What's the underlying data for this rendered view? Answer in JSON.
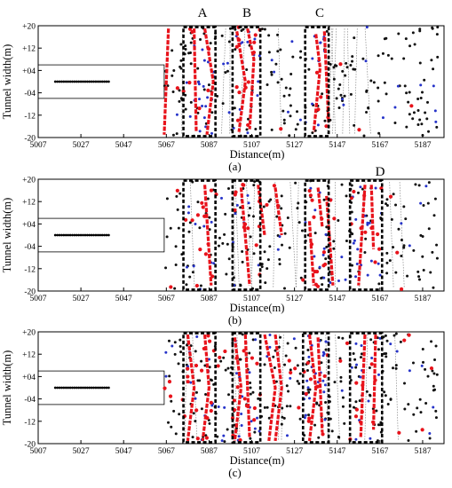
{
  "figure": {
    "letters": [
      "A",
      "B",
      "C",
      "D"
    ]
  },
  "chart_data": [
    {
      "type": "scatter",
      "caption": "(a)",
      "xlabel": "Distance(m)",
      "ylabel": "Tunnel width(m)",
      "xlim": [
        5007,
        5197
      ],
      "ylim": [
        -20,
        20
      ],
      "x_ticks": [
        "5007",
        "5027",
        "5047",
        "5067",
        "5087",
        "5107",
        "5127",
        "5147",
        "5167",
        "5187"
      ],
      "y_ticks": [
        "-20",
        "-12",
        "-04",
        "+04",
        "+12",
        "+20"
      ],
      "grid": false,
      "tunnel_face": {
        "x": [
          5007,
          5066
        ],
        "y": [
          -6,
          6
        ]
      },
      "measuring_points": {
        "x_start": 5015,
        "x_end": 5040,
        "count": 26,
        "y": 0
      },
      "zones": [
        {
          "label": "A",
          "x": [
            5075,
            5090
          ]
        },
        {
          "label": "B",
          "x": [
            5098,
            5111
          ]
        },
        {
          "label": "C",
          "x": [
            5132,
            5143
          ]
        }
      ],
      "series": [
        {
          "color": "#e8131b",
          "segments": [
            [
              [
                5068,
                19
              ],
              [
                5066,
                -19
              ]
            ],
            [
              [
                5080,
                19
              ],
              [
                5081,
                -18
              ]
            ],
            [
              [
                5085,
                19
              ],
              [
                5089,
                0
              ],
              [
                5086,
                -19
              ]
            ],
            [
              [
                5100,
                18
              ],
              [
                5104,
                0
              ],
              [
                5101,
                -18
              ]
            ],
            [
              [
                5105,
                19
              ],
              [
                5108,
                8
              ],
              [
                5106,
                -17
              ]
            ],
            [
              [
                5137,
                17
              ],
              [
                5139,
                5
              ],
              [
                5136,
                -18
              ]
            ],
            [
              [
                5141,
                18
              ],
              [
                5143,
                -15
              ]
            ]
          ]
        },
        {
          "color": "#2633c9"
        },
        {
          "color": "#111111"
        }
      ],
      "point_density": {
        "red": 30,
        "blue": 70,
        "black": 200
      }
    },
    {
      "type": "scatter",
      "caption": "(b)",
      "xlabel": "Distance(m)",
      "ylabel": "Tunnel width(m)",
      "xlim": [
        5007,
        5197
      ],
      "ylim": [
        -20,
        20
      ],
      "x_ticks": [
        "5007",
        "5027",
        "5047",
        "5067",
        "5087",
        "5107",
        "5127",
        "5147",
        "5167",
        "5187"
      ],
      "y_ticks": [
        "-20",
        "-12",
        "-04",
        "+04",
        "+12",
        "+20"
      ],
      "grid": false,
      "tunnel_face": {
        "x": [
          5007,
          5066
        ],
        "y": [
          -6,
          6
        ]
      },
      "measuring_points": {
        "x_start": 5015,
        "x_end": 5040,
        "count": 26,
        "y": 0
      },
      "zones": [
        {
          "label": "A",
          "x": [
            5075,
            5090
          ]
        },
        {
          "label": "B",
          "x": [
            5098,
            5111
          ]
        },
        {
          "label": "C",
          "x": [
            5132,
            5143
          ]
        },
        {
          "label": "D",
          "x": [
            5153,
            5168
          ]
        }
      ],
      "series": [
        {
          "color": "#e8131b",
          "segments": [
            [
              [
                5085,
                18
              ],
              [
                5088,
                -18
              ]
            ],
            [
              [
                5102,
                17
              ],
              [
                5106,
                -18
              ]
            ],
            [
              [
                5110,
                18
              ],
              [
                5113,
                0
              ]
            ],
            [
              [
                5118,
                17
              ],
              [
                5121,
                0
              ]
            ],
            [
              [
                5138,
                17
              ],
              [
                5140,
                3
              ]
            ],
            [
              [
                5134,
                5
              ],
              [
                5136,
                -18
              ]
            ],
            [
              [
                5142,
                14
              ],
              [
                5145,
                -18
              ]
            ],
            [
              [
                5160,
                18
              ],
              [
                5157,
                -18
              ]
            ],
            [
              [
                5163,
                18
              ],
              [
                5164,
                -5
              ]
            ]
          ]
        },
        {
          "color": "#2633c9"
        },
        {
          "color": "#111111"
        }
      ],
      "point_density": {
        "red": 60,
        "blue": 60,
        "black": 180
      }
    },
    {
      "type": "scatter",
      "caption": "(c)",
      "xlabel": "Distance(m)",
      "ylabel": "Tunnel width(m)",
      "xlim": [
        5007,
        5197
      ],
      "ylim": [
        -20,
        20
      ],
      "x_ticks": [
        "5007",
        "5027",
        "5047",
        "5067",
        "5087",
        "5107",
        "5127",
        "5147",
        "5167",
        "5187"
      ],
      "y_ticks": [
        "-20",
        "-12",
        "-04",
        "+04",
        "+12",
        "+20"
      ],
      "grid": false,
      "tunnel_face": {
        "x": [
          5007,
          5066
        ],
        "y": [
          -6,
          6
        ]
      },
      "measuring_points": {
        "x_start": 5015,
        "x_end": 5040,
        "count": 26,
        "y": 0
      },
      "zones": [
        {
          "label": "A",
          "x": [
            5075,
            5090
          ]
        },
        {
          "label": "B",
          "x": [
            5098,
            5111
          ]
        },
        {
          "label": "C",
          "x": [
            5131,
            5143
          ]
        },
        {
          "label": "D",
          "x": [
            5153,
            5168
          ]
        }
      ],
      "series": [
        {
          "color": "#e8131b",
          "segments": [
            [
              [
                5077,
                19
              ],
              [
                5080,
                0
              ],
              [
                5077,
                -19
              ]
            ],
            [
              [
                5085,
                19
              ],
              [
                5087,
                0
              ],
              [
                5084,
                -19
              ]
            ],
            [
              [
                5099,
                18
              ],
              [
                5102,
                0
              ],
              [
                5099,
                -19
              ]
            ],
            [
              [
                5104,
                19
              ],
              [
                5106,
                -18
              ]
            ],
            [
              [
                5113,
                19
              ],
              [
                5118,
                0
              ],
              [
                5115,
                -19
              ]
            ],
            [
              [
                5118,
                19
              ],
              [
                5121,
                0
              ],
              [
                5118,
                -19
              ]
            ],
            [
              [
                5134,
                19
              ],
              [
                5137,
                0
              ],
              [
                5134,
                -19
              ]
            ],
            [
              [
                5138,
                18
              ],
              [
                5140,
                -16
              ]
            ],
            [
              [
                5160,
                19
              ],
              [
                5158,
                -18
              ]
            ],
            [
              [
                5165,
                19
              ],
              [
                5164,
                -15
              ]
            ]
          ]
        },
        {
          "color": "#2633c9"
        },
        {
          "color": "#111111"
        }
      ],
      "point_density": {
        "red": 70,
        "blue": 90,
        "black": 220
      }
    }
  ]
}
